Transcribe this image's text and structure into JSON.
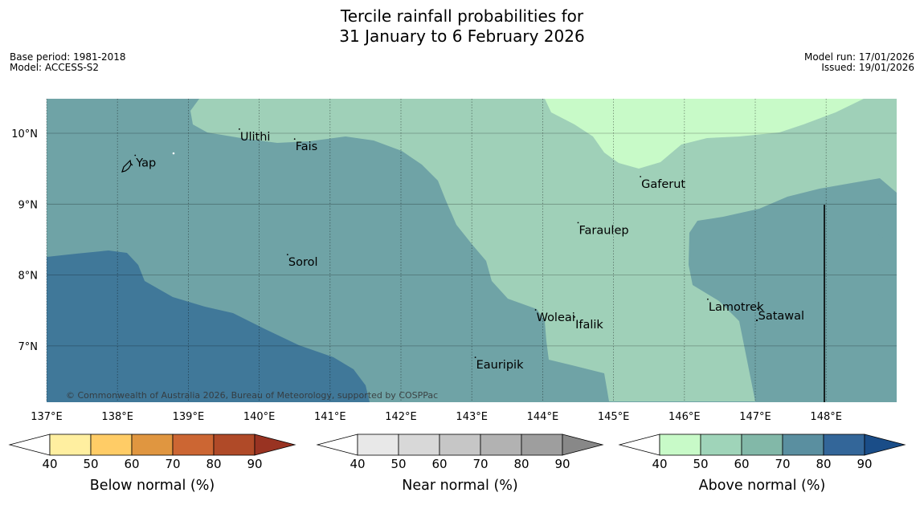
{
  "title_line1": "Tercile rainfall probabilities for",
  "title_line2": "31 January to 6 February 2026",
  "meta_left": [
    "Base period: 1981-2018",
    "Model: ACCESS-S2"
  ],
  "meta_right": [
    "Model run: 17/01/2026",
    "Issued: 19/01/2026"
  ],
  "copyright": "© Commonwealth of Australia 2026, Bureau of Meteorology, supported by COSPPac",
  "lon_labels": [
    "137°E",
    "138°E",
    "139°E",
    "140°E",
    "141°E",
    "142°E",
    "143°E",
    "144°E",
    "145°E",
    "146°E",
    "147°E",
    "148°E"
  ],
  "lat_labels": [
    "10°N",
    "9°N",
    "8°N",
    "7°N"
  ],
  "places": [
    {
      "name": "Yap",
      "lon": 138.25,
      "lat": 9.53
    },
    {
      "name": "Ulithi",
      "lon": 139.72,
      "lat": 9.9
    },
    {
      "name": "Fais",
      "lon": 140.5,
      "lat": 9.76
    },
    {
      "name": "Sorol",
      "lon": 140.4,
      "lat": 8.13
    },
    {
      "name": "Gaferut",
      "lon": 145.38,
      "lat": 9.23
    },
    {
      "name": "Faraulep",
      "lon": 144.5,
      "lat": 8.58
    },
    {
      "name": "Woleai",
      "lon": 143.9,
      "lat": 7.35
    },
    {
      "name": "Ifalik",
      "lon": 144.45,
      "lat": 7.25
    },
    {
      "name": "Lamotrek",
      "lon": 146.33,
      "lat": 7.5
    },
    {
      "name": "Satawal",
      "lon": 147.03,
      "lat": 7.37
    },
    {
      "name": "Eauripik",
      "lon": 143.05,
      "lat": 6.68
    }
  ],
  "colorbars": [
    {
      "label": "Below normal (%)",
      "ticks": [
        "40",
        "50",
        "60",
        "70",
        "80",
        "90"
      ],
      "colors": [
        "#ffffff",
        "#ffefa0",
        "#ffcc66",
        "#e09640",
        "#cc6633",
        "#b04a28",
        "#993322"
      ]
    },
    {
      "label": "Near normal (%)",
      "ticks": [
        "40",
        "50",
        "60",
        "70",
        "80",
        "90"
      ],
      "colors": [
        "#ffffff",
        "#e8e8e8",
        "#d8d8d8",
        "#c6c6c6",
        "#b2b2b2",
        "#9e9e9e",
        "#888888"
      ]
    },
    {
      "label": "Above normal (%)",
      "ticks": [
        "40",
        "50",
        "60",
        "70",
        "80",
        "90"
      ],
      "colors": [
        "#ffffff",
        "#c8fac8",
        "#9fd4b9",
        "#82b8a8",
        "#5a8fa0",
        "#336699",
        "#1a4d88"
      ]
    }
  ],
  "colors": {
    "prob_40_50": "#c8fac8",
    "prob_50_60": "#9fd0b8",
    "prob_60_70": "#6fa3a6",
    "prob_70_80": "#407899",
    "grid": "#000000",
    "coast": "#000000"
  }
}
